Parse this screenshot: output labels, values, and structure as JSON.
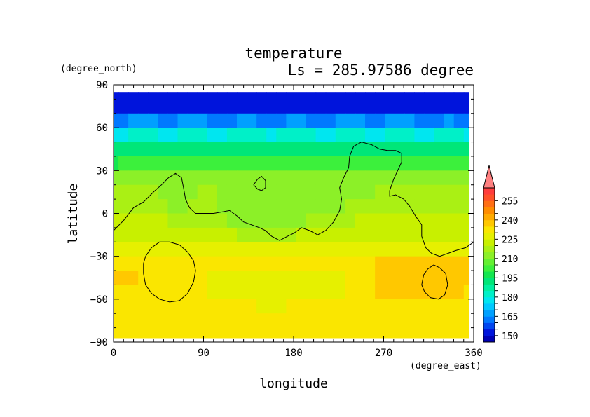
{
  "chart_data": {
    "type": "heatmap",
    "title": "temperature",
    "subtitle": "Ls = 285.97586 degree",
    "xlabel": "longitude",
    "ylabel": "latitude",
    "x_unit": "(degree_east)",
    "y_unit": "(degree_north)",
    "xlim": [
      0,
      360
    ],
    "ylim": [
      -90,
      90
    ],
    "xticks": [
      0,
      90,
      180,
      270,
      360
    ],
    "yticks": [
      90,
      60,
      30,
      0,
      -30,
      -60,
      -90
    ],
    "data_extent": {
      "lon": [
        0,
        355
      ],
      "lat": [
        -87,
        85
      ]
    },
    "legend": {
      "position": "right",
      "labels": [
        255,
        240,
        225,
        210,
        195,
        180,
        165,
        150
      ],
      "levels": [
        145,
        150,
        155,
        160,
        165,
        170,
        175,
        180,
        185,
        190,
        195,
        200,
        205,
        210,
        215,
        220,
        225,
        230,
        235,
        240,
        245,
        250,
        255,
        260
      ],
      "colors": [
        "#0000b4",
        "#0014dc",
        "#0046f0",
        "#0078ff",
        "#00a0ff",
        "#00c8ff",
        "#00e6f0",
        "#00f0c8",
        "#00f0a0",
        "#00e678",
        "#14e650",
        "#3cf03c",
        "#64f032",
        "#8cf028",
        "#aaf014",
        "#c8f000",
        "#e6f000",
        "#fae600",
        "#ffc800",
        "#ffaa00",
        "#ff8c00",
        "#ff6e14",
        "#ff5028",
        "#ff3c3c"
      ],
      "overflow_color": "#ff8080"
    },
    "rows": [
      {
        "lat": 85,
        "temps": [
          150,
          150,
          150,
          150,
          150,
          150,
          150,
          150,
          150,
          150,
          150,
          150,
          150,
          150,
          150,
          150,
          150,
          150,
          150,
          150,
          150,
          150,
          150,
          150,
          150,
          150,
          150,
          150,
          150,
          150,
          150,
          150,
          150,
          150,
          150,
          150,
          150
        ]
      },
      {
        "lat": 75,
        "temps": [
          152,
          152,
          153,
          153,
          152,
          152,
          152,
          153,
          153,
          152,
          152,
          152,
          152,
          153,
          153,
          152,
          152,
          152,
          153,
          153,
          152,
          152,
          152,
          152,
          153,
          153,
          152,
          152,
          152,
          153,
          153,
          152,
          152,
          152,
          152,
          152,
          152
        ]
      },
      {
        "lat": 65,
        "temps": [
          162,
          163,
          165,
          166,
          165,
          163,
          163,
          165,
          166,
          165,
          163,
          163,
          164,
          166,
          166,
          164,
          163,
          164,
          166,
          166,
          164,
          163,
          163,
          165,
          166,
          165,
          163,
          163,
          165,
          166,
          165,
          163,
          163,
          164,
          165,
          164,
          163
        ]
      },
      {
        "lat": 55,
        "temps": [
          178,
          179,
          181,
          182,
          181,
          179,
          179,
          181,
          182,
          181,
          179,
          179,
          180,
          182,
          182,
          180,
          179,
          180,
          182,
          182,
          180,
          179,
          179,
          181,
          182,
          181,
          179,
          179,
          181,
          182,
          181,
          179,
          179,
          180,
          181,
          180,
          179
        ]
      },
      {
        "lat": 45,
        "temps": [
          190,
          191,
          193,
          194,
          193,
          191,
          191,
          193,
          194,
          193,
          191,
          191,
          192,
          194,
          194,
          192,
          191,
          192,
          194,
          194,
          192,
          191,
          191,
          193,
          194,
          193,
          191,
          191,
          193,
          194,
          193,
          191,
          191,
          192,
          193,
          192,
          191
        ]
      },
      {
        "lat": 35,
        "temps": [
          199,
          200,
          201,
          202,
          201,
          200,
          200,
          201,
          202,
          201,
          200,
          200,
          200,
          202,
          202,
          200,
          200,
          200,
          202,
          202,
          200,
          200,
          200,
          201,
          202,
          201,
          200,
          200,
          201,
          202,
          201,
          200,
          200,
          200,
          201,
          200,
          200
        ]
      },
      {
        "lat": 25,
        "temps": [
          214,
          214,
          214,
          214,
          212,
          212,
          212,
          214,
          214,
          214,
          214,
          214,
          210,
          210,
          210,
          210,
          210,
          210,
          210,
          210,
          210,
          210,
          210,
          210,
          210,
          210,
          210,
          212,
          214,
          214,
          214,
          214,
          214,
          214,
          214,
          214,
          214
        ]
      },
      {
        "lat": 15,
        "temps": [
          217,
          217,
          217,
          217,
          215,
          212,
          211,
          212,
          214,
          215,
          215,
          213,
          211,
          211,
          211,
          211,
          211,
          211,
          211,
          211,
          211,
          211,
          211,
          211,
          212,
          213,
          214,
          216,
          217,
          218,
          218,
          218,
          218,
          218,
          218,
          218,
          218
        ]
      },
      {
        "lat": 5,
        "temps": [
          219,
          219,
          219,
          219,
          218,
          216,
          214,
          214,
          215,
          216,
          216,
          214,
          212,
          211,
          211,
          211,
          211,
          211,
          211,
          211,
          211,
          212,
          213,
          214,
          215,
          216,
          217,
          218,
          218,
          219,
          219,
          219,
          219,
          219,
          219,
          219,
          219
        ]
      },
      {
        "lat": -5,
        "temps": [
          221,
          221,
          221,
          221,
          221,
          220,
          219,
          218,
          217,
          217,
          217,
          216,
          214,
          213,
          212,
          212,
          212,
          212,
          213,
          214,
          215,
          216,
          217,
          218,
          219,
          220,
          220,
          221,
          221,
          221,
          221,
          221,
          221,
          221,
          221,
          221,
          221
        ]
      },
      {
        "lat": -15,
        "temps": [
          224,
          224,
          224,
          224,
          224,
          224,
          224,
          223,
          222,
          222,
          222,
          221,
          220,
          219,
          218,
          218,
          218,
          218,
          219,
          220,
          221,
          222,
          223,
          224,
          224,
          224,
          224,
          224,
          224,
          224,
          224,
          224,
          224,
          224,
          224,
          224,
          224
        ]
      },
      {
        "lat": -25,
        "temps": [
          227,
          227,
          227,
          227,
          227,
          227,
          227,
          227,
          226,
          226,
          226,
          226,
          226,
          226,
          226,
          226,
          226,
          226,
          226,
          226,
          226,
          226,
          226,
          226,
          227,
          227,
          227,
          227,
          227,
          227,
          227,
          227,
          227,
          227,
          227,
          227,
          227
        ]
      },
      {
        "lat": -35,
        "temps": [
          234,
          234,
          233,
          231,
          230,
          230,
          231,
          231,
          231,
          231,
          230,
          230,
          230,
          230,
          230,
          230,
          230,
          230,
          230,
          230,
          230,
          230,
          230,
          230,
          230,
          231,
          233,
          235,
          236,
          237,
          237,
          237,
          236,
          236,
          236,
          236,
          236
        ]
      },
      {
        "lat": -45,
        "temps": [
          236,
          237,
          236,
          233,
          231,
          230,
          231,
          231,
          231,
          230,
          229,
          229,
          228,
          228,
          228,
          228,
          228,
          228,
          228,
          228,
          228,
          228,
          228,
          229,
          230,
          231,
          233,
          235,
          237,
          238,
          238,
          238,
          238,
          237,
          237,
          236,
          236
        ]
      },
      {
        "lat": -55,
        "temps": [
          232,
          232,
          232,
          232,
          231,
          231,
          231,
          231,
          230,
          230,
          229,
          228,
          227,
          227,
          227,
          227,
          227,
          227,
          227,
          227,
          227,
          227,
          228,
          229,
          230,
          231,
          233,
          235,
          236,
          237,
          237,
          237,
          236,
          236,
          235,
          235,
          234
        ]
      },
      {
        "lat": -65,
        "temps": [
          230,
          230,
          230,
          230,
          230,
          230,
          230,
          230,
          230,
          230,
          230,
          230,
          230,
          230,
          230,
          229,
          229,
          229,
          230,
          230,
          230,
          230,
          230,
          230,
          230,
          231,
          231,
          232,
          232,
          233,
          233,
          233,
          233,
          232,
          232,
          232,
          231
        ]
      },
      {
        "lat": -75,
        "temps": [
          231,
          231,
          231,
          231,
          231,
          231,
          231,
          231,
          231,
          231,
          231,
          231,
          231,
          231,
          231,
          231,
          231,
          231,
          231,
          231,
          231,
          231,
          231,
          231,
          231,
          231,
          231,
          231,
          231,
          231,
          231,
          231,
          231,
          231,
          231,
          231,
          231
        ]
      },
      {
        "lat": -87,
        "temps": [
          232,
          232,
          232,
          232,
          232,
          232,
          232,
          232,
          232,
          232,
          232,
          232,
          232,
          232,
          232,
          232,
          232,
          232,
          232,
          232,
          232,
          232,
          232,
          232,
          232,
          232,
          232,
          232,
          232,
          232,
          232,
          232,
          232,
          232,
          232,
          232,
          232
        ]
      }
    ],
    "contours": [
      [
        [
          0,
          -12
        ],
        [
          10,
          -5
        ],
        [
          20,
          4
        ],
        [
          30,
          8
        ],
        [
          40,
          15
        ],
        [
          48,
          20
        ],
        [
          55,
          25
        ],
        [
          62,
          28
        ],
        [
          68,
          25
        ],
        [
          70,
          18
        ],
        [
          72,
          10
        ],
        [
          76,
          4
        ],
        [
          82,
          0
        ],
        [
          92,
          0
        ],
        [
          100,
          0
        ],
        [
          108,
          1
        ],
        [
          116,
          2
        ],
        [
          124,
          -2
        ],
        [
          130,
          -6
        ],
        [
          138,
          -8
        ],
        [
          146,
          -10
        ],
        [
          152,
          -12
        ],
        [
          158,
          -16
        ],
        [
          166,
          -19
        ],
        [
          174,
          -16
        ],
        [
          180,
          -14
        ],
        [
          188,
          -10
        ],
        [
          196,
          -12
        ],
        [
          204,
          -15
        ],
        [
          212,
          -12
        ],
        [
          220,
          -6
        ],
        [
          226,
          2
        ],
        [
          228,
          10
        ],
        [
          226,
          18
        ],
        [
          230,
          25
        ],
        [
          235,
          32
        ],
        [
          236,
          40
        ],
        [
          240,
          47
        ],
        [
          248,
          50
        ],
        [
          258,
          48
        ],
        [
          266,
          45
        ],
        [
          274,
          44
        ],
        [
          282,
          44
        ],
        [
          288,
          42
        ],
        [
          288,
          36
        ],
        [
          284,
          30
        ],
        [
          280,
          24
        ],
        [
          276,
          16
        ],
        [
          276,
          12
        ],
        [
          282,
          13
        ],
        [
          290,
          10
        ],
        [
          296,
          5
        ],
        [
          302,
          -2
        ],
        [
          308,
          -8
        ],
        [
          308,
          -16
        ],
        [
          312,
          -24
        ],
        [
          318,
          -28
        ],
        [
          326,
          -30
        ],
        [
          334,
          -28
        ],
        [
          342,
          -26
        ],
        [
          352,
          -24
        ],
        [
          360,
          -20
        ]
      ],
      [
        [
          32,
          -30
        ],
        [
          38,
          -24
        ],
        [
          46,
          -20
        ],
        [
          56,
          -20
        ],
        [
          66,
          -22
        ],
        [
          74,
          -27
        ],
        [
          80,
          -33
        ],
        [
          82,
          -40
        ],
        [
          80,
          -48
        ],
        [
          74,
          -56
        ],
        [
          66,
          -61
        ],
        [
          56,
          -62
        ],
        [
          46,
          -60
        ],
        [
          38,
          -56
        ],
        [
          32,
          -50
        ],
        [
          30,
          -42
        ],
        [
          30,
          -35
        ],
        [
          32,
          -30
        ]
      ],
      [
        [
          320,
          -36
        ],
        [
          326,
          -38
        ],
        [
          332,
          -42
        ],
        [
          334,
          -50
        ],
        [
          331,
          -57
        ],
        [
          325,
          -60
        ],
        [
          317,
          -59
        ],
        [
          311,
          -55
        ],
        [
          308,
          -50
        ],
        [
          310,
          -43
        ],
        [
          314,
          -39
        ],
        [
          320,
          -36
        ]
      ],
      [
        [
          140,
          20
        ],
        [
          144,
          24
        ],
        [
          148,
          26
        ],
        [
          152,
          23
        ],
        [
          152,
          18
        ],
        [
          148,
          16
        ],
        [
          144,
          17
        ],
        [
          140,
          20
        ]
      ]
    ]
  }
}
